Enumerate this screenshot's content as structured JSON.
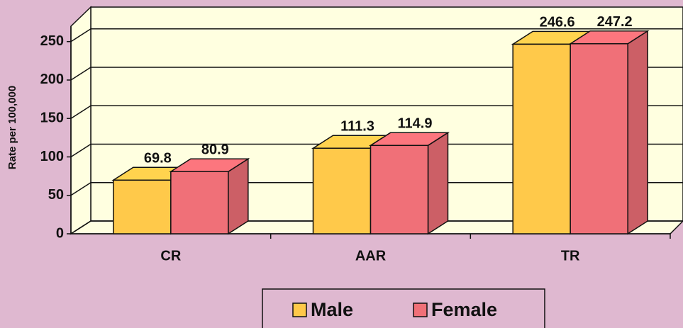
{
  "chart_data": {
    "type": "bar",
    "y_label": "Rate per 100,000",
    "categories": [
      "CR",
      "AAR",
      "TR"
    ],
    "series": [
      {
        "name": "Male",
        "color": "#ffc94a",
        "values": [
          69.8,
          111.3,
          246.6
        ]
      },
      {
        "name": "Female",
        "color": "#f07078",
        "values": [
          80.9,
          114.9,
          247.2
        ]
      }
    ],
    "ylim": [
      0,
      270
    ],
    "yticks": [
      0,
      50,
      100,
      150,
      200,
      250
    ],
    "grid": true,
    "legend": "bottom"
  }
}
